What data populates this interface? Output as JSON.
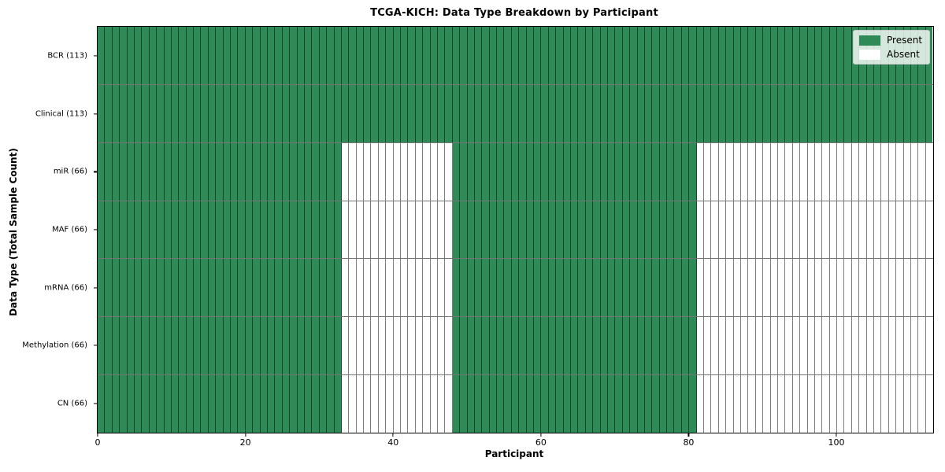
{
  "figure": {
    "background_color": "#ffffff"
  },
  "chart_data": {
    "type": "heatmap",
    "title": "TCGA-KICH: Data Type Breakdown by Participant",
    "xlabel": "Participant",
    "ylabel": "Data Type (Total Sample Count)",
    "x_range": [
      0,
      113
    ],
    "n_participants": 113,
    "x_ticks": [
      0,
      20,
      40,
      60,
      80,
      100
    ],
    "grid": true,
    "rows": [
      {
        "label": "BCR (113)",
        "count": 113,
        "present_ranges": [
          [
            0,
            113
          ]
        ]
      },
      {
        "label": "Clinical (113)",
        "count": 113,
        "present_ranges": [
          [
            0,
            113
          ]
        ]
      },
      {
        "label": "miR (66)",
        "count": 66,
        "present_ranges": [
          [
            0,
            33
          ],
          [
            48,
            81
          ]
        ]
      },
      {
        "label": "MAF (66)",
        "count": 66,
        "present_ranges": [
          [
            0,
            33
          ],
          [
            48,
            81
          ]
        ]
      },
      {
        "label": "mRNA (66)",
        "count": 66,
        "present_ranges": [
          [
            0,
            33
          ],
          [
            48,
            81
          ]
        ]
      },
      {
        "label": "Methylation (66)",
        "count": 66,
        "present_ranges": [
          [
            0,
            33
          ],
          [
            48,
            81
          ]
        ]
      },
      {
        "label": "CN (66)",
        "count": 66,
        "present_ranges": [
          [
            0,
            33
          ],
          [
            48,
            81
          ]
        ]
      }
    ],
    "legend": {
      "position": "upper right",
      "entries": [
        {
          "label": "Present",
          "color": "#2e8b57"
        },
        {
          "label": "Absent",
          "color": "#ffffff"
        }
      ]
    },
    "colors": {
      "present": "#2e8b57",
      "absent": "#ffffff"
    }
  }
}
